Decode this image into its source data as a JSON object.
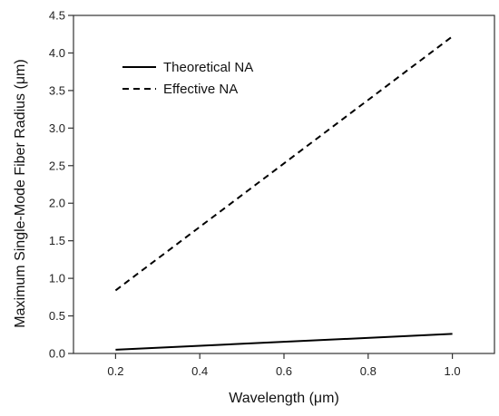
{
  "chart_data": {
    "type": "line",
    "xlabel": "Wavelength (μm)",
    "ylabel": "Maximum Single-Mode Fiber Radius (μm)",
    "xlim": [
      0.1,
      1.1
    ],
    "ylim": [
      0.0,
      4.5
    ],
    "xticks": [
      0.2,
      0.4,
      0.6,
      0.8,
      1.0
    ],
    "yticks": [
      0.0,
      0.5,
      1.0,
      1.5,
      2.0,
      2.5,
      3.0,
      3.5,
      4.0,
      4.5
    ],
    "xtick_labels": [
      "0.2",
      "0.4",
      "0.6",
      "0.8",
      "1.0"
    ],
    "ytick_labels": [
      "0.0",
      "0.5",
      "1.0",
      "1.5",
      "2.0",
      "2.5",
      "3.0",
      "3.5",
      "4.0",
      "4.5"
    ],
    "grid": false,
    "legend_position": "top-left",
    "series": [
      {
        "name": "Theoretical NA",
        "line_style": "solid",
        "color": "#000000",
        "x": [
          0.2,
          1.0
        ],
        "y": [
          0.05,
          0.26
        ]
      },
      {
        "name": "Effective NA",
        "line_style": "dashed",
        "color": "#000000",
        "x": [
          0.2,
          1.0
        ],
        "y": [
          0.84,
          4.22
        ]
      }
    ]
  }
}
